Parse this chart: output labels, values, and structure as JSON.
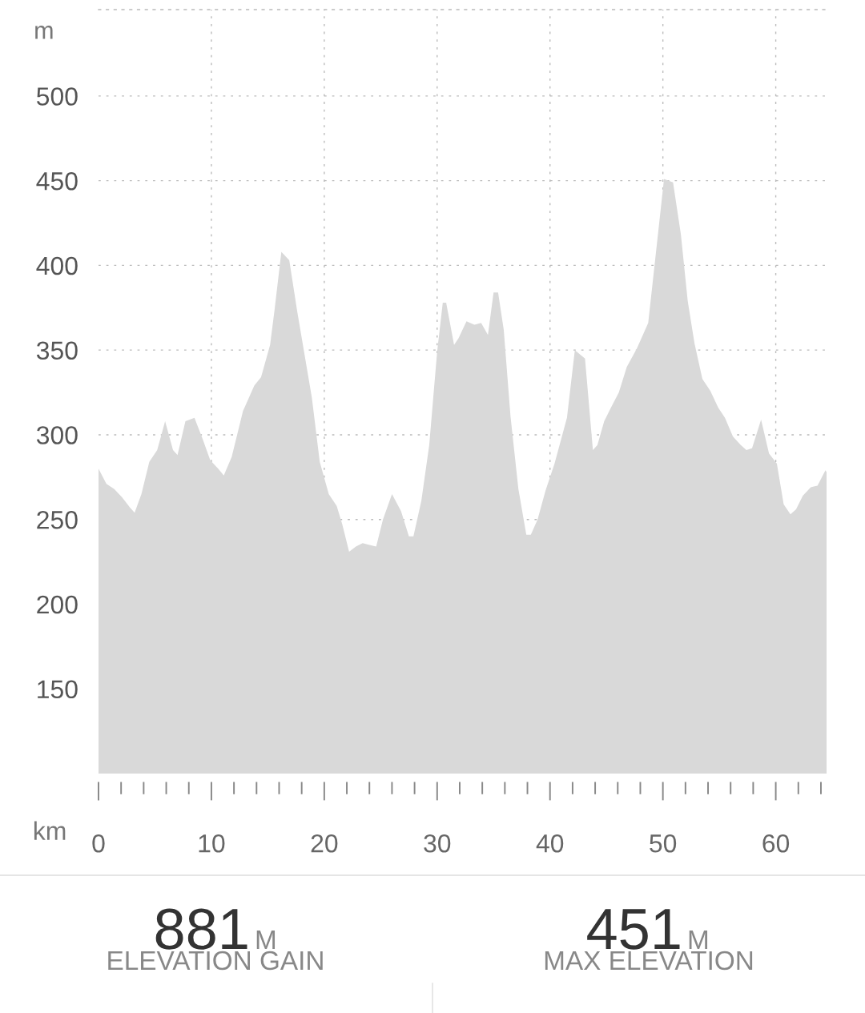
{
  "chart_data": {
    "type": "area",
    "ylabel": "m",
    "xlabel": "km",
    "x": [
      0,
      0.7,
      1.4,
      2.1,
      2.8,
      3.2,
      3.8,
      4.5,
      5.2,
      5.9,
      6.6,
      7.0,
      7.7,
      8.5,
      9.2,
      9.9,
      10.6,
      11.1,
      11.8,
      12.8,
      13.8,
      14.4,
      15.2,
      15.6,
      16.2,
      16.9,
      17.6,
      18.9,
      19.6,
      20.4,
      21.1,
      21.6,
      22.2,
      22.8,
      23.4,
      24.0,
      24.6,
      25.2,
      26.0,
      26.8,
      27.5,
      27.9,
      28.6,
      29.3,
      30.0,
      30.5,
      30.8,
      31.5,
      31.9,
      32.6,
      33.3,
      33.9,
      34.5,
      35.0,
      35.4,
      35.9,
      36.5,
      37.2,
      37.9,
      38.3,
      38.9,
      39.6,
      40.4,
      41.5,
      42.2,
      43.1,
      43.8,
      44.2,
      44.8,
      45.4,
      46.1,
      46.8,
      47.7,
      48.7,
      50.1,
      50.9,
      51.6,
      52.2,
      52.8,
      53.5,
      54.2,
      54.9,
      55.5,
      56.2,
      56.9,
      57.4,
      57.9,
      58.7,
      59.4,
      60.1,
      60.7,
      61.3,
      61.8,
      62.4,
      63.1,
      63.7,
      64.4,
      64.5
    ],
    "series": [
      {
        "color": "#d9d9d9",
        "values": [
          280,
          271,
          268,
          263,
          257,
          254,
          265,
          284,
          291,
          308,
          291,
          288,
          308,
          310,
          298,
          285,
          280,
          276,
          287,
          314,
          329,
          334,
          353,
          374,
          408,
          403,
          373,
          322,
          284,
          265,
          258,
          247,
          231,
          234,
          236,
          235,
          234,
          250,
          265,
          255,
          240,
          240,
          261,
          294,
          349,
          378,
          378,
          353,
          357,
          367,
          365,
          366,
          359,
          384,
          384,
          362,
          311,
          268,
          241,
          241,
          250,
          267,
          283,
          310,
          350,
          345,
          291,
          294,
          308,
          316,
          325,
          340,
          351,
          366,
          451,
          449,
          418,
          379,
          354,
          333,
          326,
          316,
          310,
          299,
          294,
          291,
          292,
          309,
          289,
          283,
          259,
          253,
          256,
          264,
          269,
          270,
          279,
          278
        ]
      }
    ],
    "xlim": [
      0,
      64.5
    ],
    "ylim": [
      100,
      551
    ],
    "xticks": [
      0,
      {
        "value": 2,
        "label": null
      },
      {
        "value": 4,
        "label": null
      },
      {
        "value": 6,
        "label": null
      },
      {
        "value": 8,
        "label": null
      },
      10,
      {
        "value": 12,
        "label": null
      },
      {
        "value": 14,
        "label": null
      },
      {
        "value": 16,
        "label": null
      },
      {
        "value": 18,
        "label": null
      },
      20,
      {
        "value": 22,
        "label": null
      },
      {
        "value": 24,
        "label": null
      },
      {
        "value": 26,
        "label": null
      },
      {
        "value": 28,
        "label": null
      },
      30,
      {
        "value": 32,
        "label": null
      },
      {
        "value": 34,
        "label": null
      },
      {
        "value": 36,
        "label": null
      },
      {
        "value": 38,
        "label": null
      },
      40,
      {
        "value": 42,
        "label": null
      },
      {
        "value": 44,
        "label": null
      },
      {
        "value": 46,
        "label": null
      },
      {
        "value": 48,
        "label": null
      },
      50,
      {
        "value": 52,
        "label": null
      },
      {
        "value": 54,
        "label": null
      },
      {
        "value": 56,
        "label": null
      },
      {
        "value": 58,
        "label": null
      },
      60,
      {
        "value": 62,
        "label": null
      },
      {
        "value": 64,
        "label": null
      }
    ],
    "yticks": [
      150,
      200,
      250,
      300,
      350,
      400,
      450,
      500
    ],
    "grid": true,
    "line_style": "dotted",
    "annotations": [
      "881",
      "M",
      "ELEVATION GAIN",
      "451",
      "M",
      "MAX ELEVATION"
    ]
  }
}
